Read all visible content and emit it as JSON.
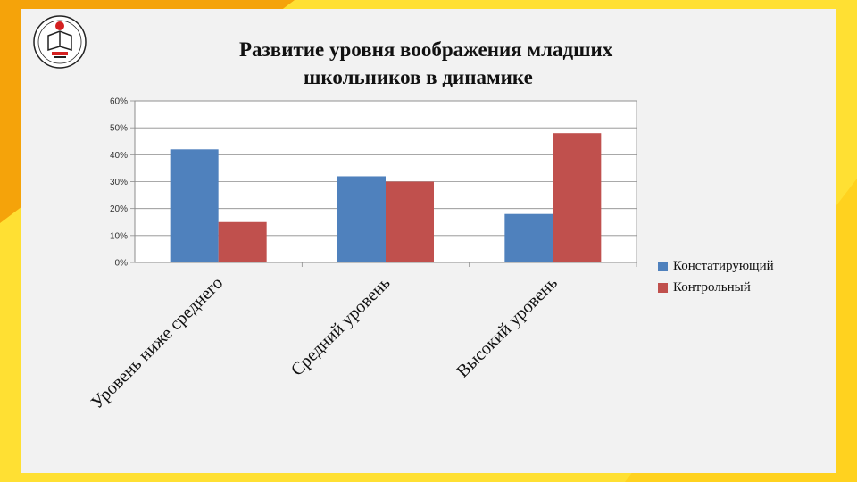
{
  "slide": {
    "title_line1": "Развитие уровня воображения младших",
    "title_line2": "школьников в динамике",
    "colors": {
      "background": "#FFE033",
      "accent": "#F5A30A",
      "card": "#F2F2F2"
    },
    "logo_icon": "university-emblem-icon"
  },
  "chart_data": {
    "type": "bar",
    "categories": [
      "Уровень ниже среднего",
      "Средний уровень",
      "Высокий уровень"
    ],
    "series": [
      {
        "name": "Констатирующий",
        "values": [
          0.42,
          0.32,
          0.18
        ],
        "color": "#4F81BD"
      },
      {
        "name": "Контрольный",
        "values": [
          0.15,
          0.3,
          0.48
        ],
        "color": "#C0504D"
      }
    ],
    "yticks": [
      "0%",
      "10%",
      "20%",
      "30%",
      "40%",
      "50%",
      "60%"
    ],
    "ylim": [
      0,
      0.6
    ],
    "grid": true,
    "legend_position": "right"
  }
}
